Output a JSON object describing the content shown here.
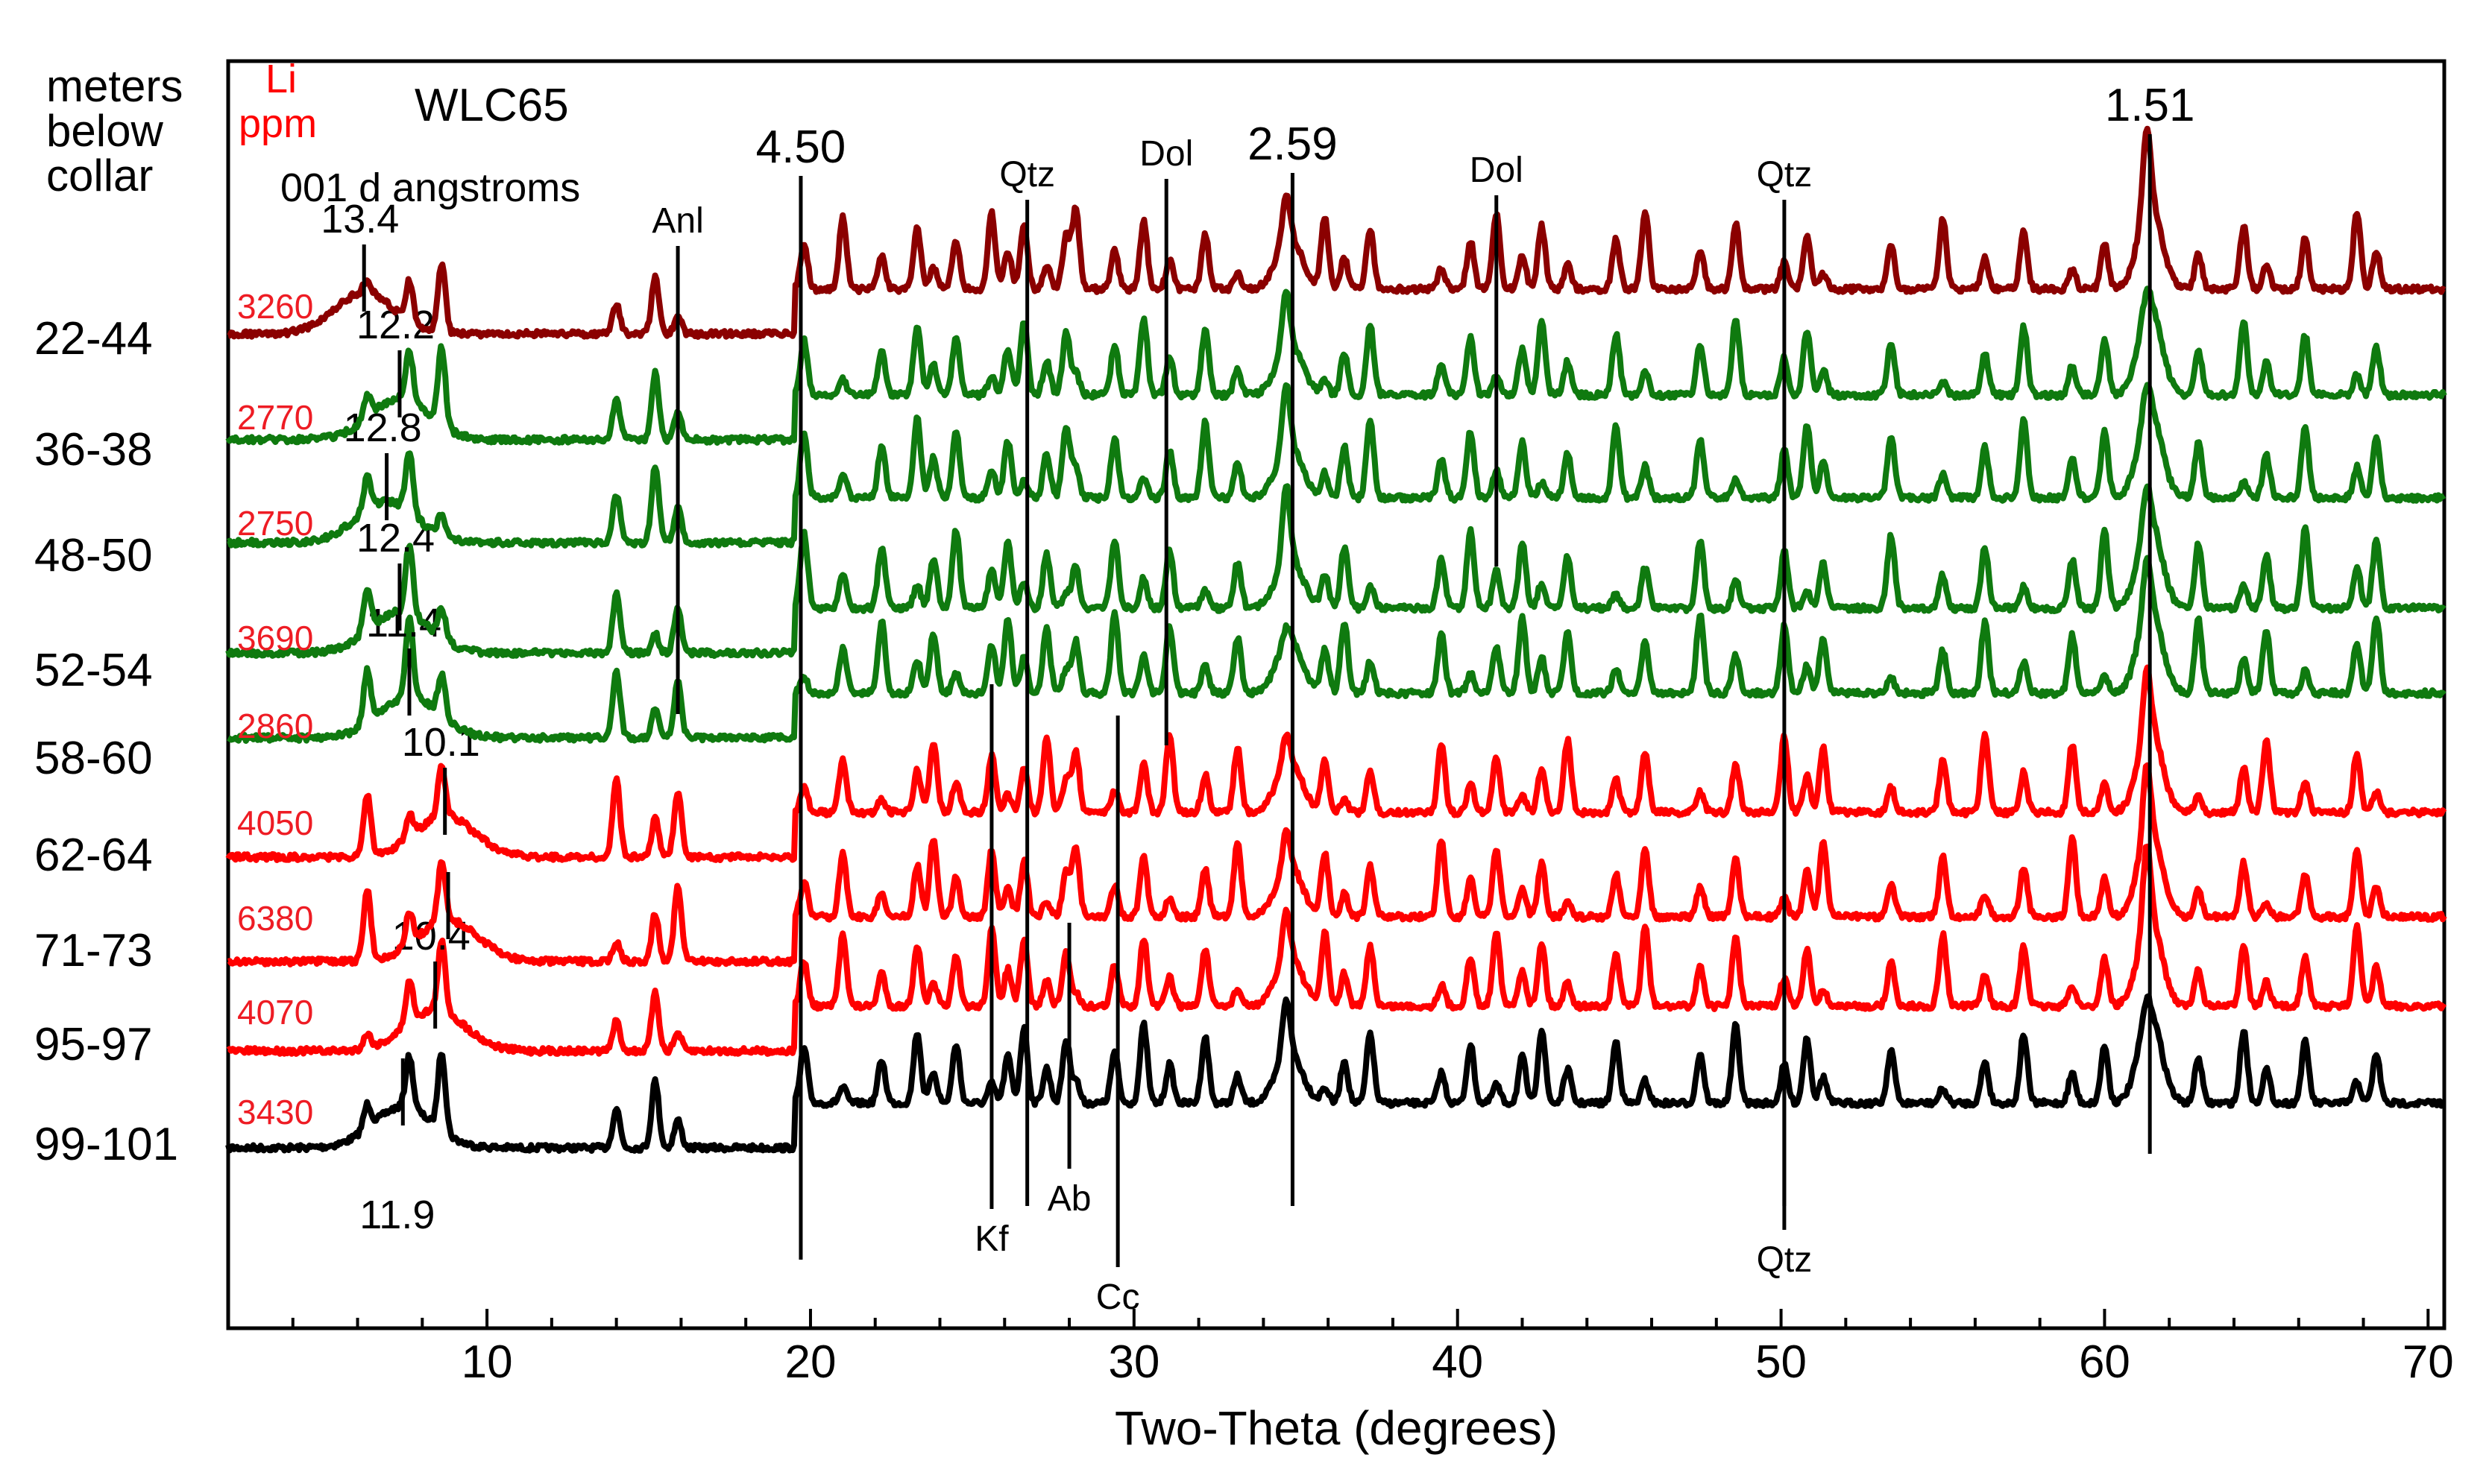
{
  "chart_data": {
    "type": "line",
    "title": "WLC65",
    "xlabel": "Two-Theta (degrees)",
    "ylabel": "",
    "xlim": [
      2,
      70.5
    ],
    "x_ticks": [
      "10",
      "20",
      "30",
      "40",
      "50",
      "60",
      "70"
    ],
    "header": {
      "meters_lines": [
        "meters",
        "below",
        "collar"
      ],
      "li_lines": [
        "Li",
        "ppm"
      ],
      "d_spacing_label": "001 d angstroms"
    },
    "series": [
      {
        "name": "22-44",
        "li_ppm": "3260",
        "color": "#8b0000",
        "d001": "13.4",
        "d001_pos": 6.2
      },
      {
        "name": "36-38",
        "li_ppm": "2770",
        "color": "#0f7a0f",
        "d001": "12.2",
        "d001_pos": 7.3
      },
      {
        "name": "48-50",
        "li_ppm": "2750",
        "color": "#0f7a0f",
        "d001": "12.8",
        "d001_pos": 6.9
      },
      {
        "name": "52-54",
        "li_ppm": "3690",
        "color": "#0f7a0f",
        "d001": "12.4",
        "d001_pos": 7.3
      },
      {
        "name": "58-60",
        "li_ppm": "2860",
        "color": "#0f7a0f",
        "d001": "11.4",
        "d001_pos": 7.6
      },
      {
        "name": "62-64",
        "li_ppm": "4050",
        "color": "#ff0000",
        "d001": "10.1",
        "d001_pos": 8.7
      },
      {
        "name": "71-73",
        "li_ppm": "6380",
        "color": "#ff0000",
        "d001": "",
        "d001_pos": 8.8
      },
      {
        "name": "95-97",
        "li_ppm": "4070",
        "color": "#ff0000",
        "d001": "10.4",
        "d001_pos": 8.4
      },
      {
        "name": "99-101",
        "li_ppm": "3430",
        "color": "#000000",
        "d001": "11.9",
        "d001_pos": 7.4
      }
    ],
    "peaks": [
      6.3,
      7.6,
      8.6,
      14.0,
      15.2,
      15.9,
      19.8,
      21.0,
      22.2,
      23.3,
      23.8,
      24.5,
      25.6,
      26.1,
      26.6,
      27.3,
      27.9,
      28.2,
      29.4,
      30.3,
      31.1,
      32.2,
      33.2,
      34.7,
      35.9,
      36.5,
      37.3,
      39.5,
      40.4,
      41.2,
      42.0,
      42.6,
      43.4,
      44.9,
      45.8,
      47.5,
      48.6,
      50.1,
      50.8,
      51.3,
      53.4,
      55.0,
      56.3,
      57.5,
      59.0,
      60.0,
      61.3,
      62.9,
      64.3,
      65.0,
      66.2,
      67.8,
      68.4
    ],
    "annotations": [
      {
        "label": "4.50",
        "x": 19.7
      },
      {
        "label": "2.59",
        "x": 34.9
      },
      {
        "label": "1.51",
        "x": 61.4
      },
      {
        "label": "Anl",
        "x": 15.9
      },
      {
        "label": "Dol",
        "x": 31.0
      },
      {
        "label": "Dol",
        "x": 41.2
      },
      {
        "label": "Qtz",
        "x": 50.1
      },
      {
        "label": "Kf",
        "x": 25.6
      },
      {
        "label": "Qtz",
        "x": 26.7
      },
      {
        "label": "Ab",
        "x": 28.0
      },
      {
        "label": "Cc",
        "x": 29.5
      },
      {
        "label": "Qtz",
        "x": 50.1
      }
    ]
  }
}
